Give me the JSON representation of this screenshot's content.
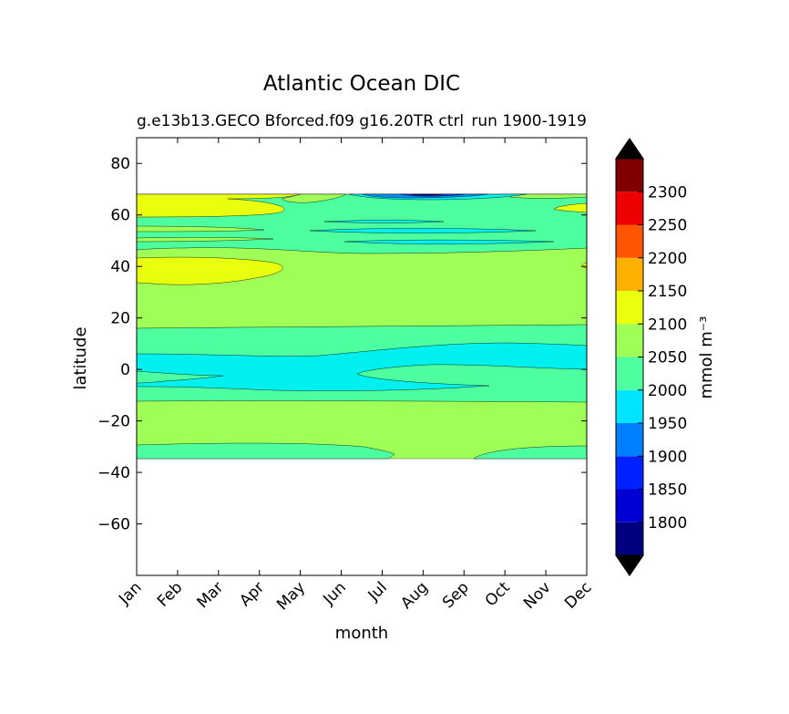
{
  "chart_data": {
    "type": "contourf",
    "title": "Atlantic Ocean DIC",
    "subtitle_left": "g.e13b13.GECO Bforced.f09 g16.20TR ctrl",
    "subtitle_right": "run 1900-1919",
    "xlabel": "month",
    "ylabel": "latitude",
    "x_ticks": [
      "Jan",
      "Feb",
      "Mar",
      "Apr",
      "May",
      "Jun",
      "Jul",
      "Aug",
      "Sep",
      "Oct",
      "Nov",
      "Dec"
    ],
    "y_ticks": [
      80,
      60,
      40,
      20,
      0,
      -20,
      -40,
      -60
    ],
    "y_tick_labels": [
      "80",
      "60",
      "40",
      "20",
      "0",
      "−20",
      "−40",
      "−60"
    ],
    "ylim": [
      -80,
      90
    ],
    "data_lat_range": [
      -34,
      69
    ],
    "colorbar": {
      "label": "mmol m⁻³",
      "levels": [
        1750,
        1800,
        1850,
        1900,
        1950,
        2000,
        2050,
        2100,
        2150,
        2200,
        2250,
        2300,
        2350
      ],
      "tick_values": [
        1800,
        1850,
        1900,
        1950,
        2000,
        2050,
        2100,
        2150,
        2200,
        2250,
        2300
      ],
      "tick_labels": [
        "1800",
        "1850",
        "1900",
        "1950",
        "2000",
        "2050",
        "2100",
        "2150",
        "2200",
        "2250",
        "2300"
      ],
      "colors": [
        "#000080",
        "#0000d4",
        "#0022ff",
        "#0080ff",
        "#00e4ff",
        "#4dff9f",
        "#a0ff56",
        "#e8ff0d",
        "#ffb000",
        "#ff5400",
        "#ee0000",
        "#800000"
      ],
      "extend_under_color": "#000000",
      "extend_over_color": "#000000"
    },
    "bands_approx": [
      {
        "lat_from": -34,
        "lat_to": -29,
        "range": "2000-2050"
      },
      {
        "lat_from": -29,
        "lat_to": -12,
        "range": "2050-2100"
      },
      {
        "lat_from": -12,
        "lat_to": -7,
        "range": "2000-2050"
      },
      {
        "lat_from": -7,
        "lat_to": 8,
        "range": "1950-2000"
      },
      {
        "lat_from": 8,
        "lat_to": 16,
        "range": "2000-2050"
      },
      {
        "lat_from": 16,
        "lat_to": 47,
        "range": "2050-2100"
      },
      {
        "lat_from": 33,
        "lat_to": 43,
        "range": "2100-2150",
        "months": "Jan-Apr"
      },
      {
        "lat_from": 47,
        "lat_to": 68,
        "range": "2000-2050"
      },
      {
        "lat_from": 59,
        "lat_to": 69,
        "range": "2100-2150",
        "months": "Jan-Apr"
      },
      {
        "lat_from": 65,
        "lat_to": 69,
        "range": "1900-1950",
        "months": "Jul-Sep"
      }
    ]
  }
}
